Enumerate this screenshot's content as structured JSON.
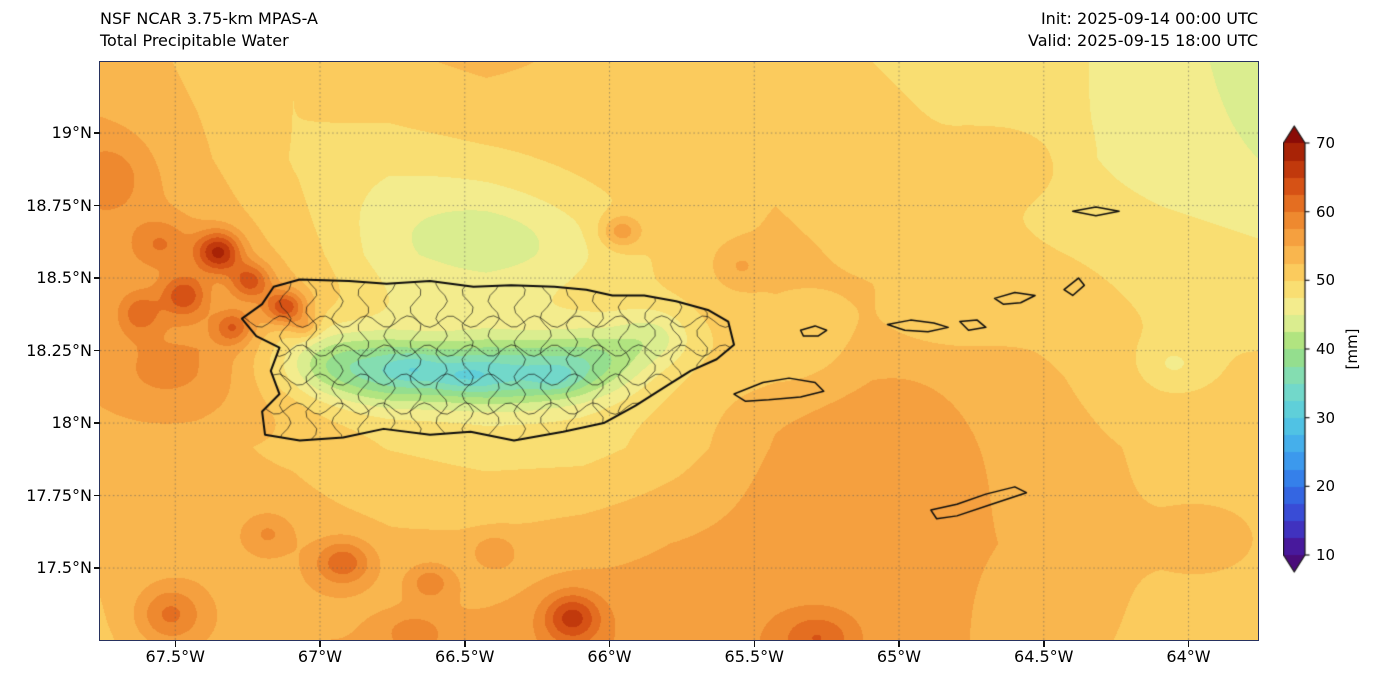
{
  "header": {
    "title_line1": "NSF NCAR 3.75-km MPAS-A",
    "title_line2": "Total Precipitable Water",
    "init_line": "Init: 2025-09-14 00:00 UTC",
    "valid_line": "Valid: 2025-09-15 18:00 UTC"
  },
  "axes": {
    "x_ticks": [
      {
        "value": -67.5,
        "label": "67.5°W"
      },
      {
        "value": -67.0,
        "label": "67°W"
      },
      {
        "value": -66.5,
        "label": "66.5°W"
      },
      {
        "value": -66.0,
        "label": "66°W"
      },
      {
        "value": -65.5,
        "label": "65.5°W"
      },
      {
        "value": -65.0,
        "label": "65°W"
      },
      {
        "value": -64.5,
        "label": "64.5°W"
      },
      {
        "value": -64.0,
        "label": "64°W"
      }
    ],
    "y_ticks": [
      {
        "value": 19.0,
        "label": "19°N"
      },
      {
        "value": 18.75,
        "label": "18.75°N"
      },
      {
        "value": 18.5,
        "label": "18.5°N"
      },
      {
        "value": 18.25,
        "label": "18.25°N"
      },
      {
        "value": 18.0,
        "label": "18°N"
      },
      {
        "value": 17.75,
        "label": "17.75°N"
      },
      {
        "value": 17.5,
        "label": "17.5°N"
      }
    ]
  },
  "colorbar": {
    "label": "[mm]",
    "min": 10,
    "max": 70,
    "extend": "both",
    "ticks": [
      {
        "value": 10,
        "label": "10"
      },
      {
        "value": 20,
        "label": "20"
      },
      {
        "value": 30,
        "label": "30"
      },
      {
        "value": 40,
        "label": "40"
      },
      {
        "value": 50,
        "label": "50"
      },
      {
        "value": 60,
        "label": "60"
      },
      {
        "value": 70,
        "label": "70"
      }
    ]
  },
  "chart_data": {
    "type": "heatmap",
    "title": "Total Precipitable Water",
    "model": "NSF NCAR 3.75-km MPAS-A",
    "init_time": "2025-09-14 00:00 UTC",
    "valid_time": "2025-09-15 18:00 UTC",
    "units": "mm",
    "lon_range": [
      -67.76,
      -63.76
    ],
    "lat_range": [
      17.252,
      19.245
    ],
    "level_min": 10,
    "level_max": 70,
    "level_step": 2.5,
    "under_color": "#4a0c7a",
    "over_color": "#8a0b06",
    "color_stops": [
      {
        "v": 10.0,
        "c": "#4c0c8a"
      },
      {
        "v": 15.0,
        "c": "#3c3fd0"
      },
      {
        "v": 20.0,
        "c": "#3173e8"
      },
      {
        "v": 25.0,
        "c": "#3fa6ef"
      },
      {
        "v": 30.0,
        "c": "#55cbe0"
      },
      {
        "v": 35.0,
        "c": "#7cdcc2"
      },
      {
        "v": 40.0,
        "c": "#9cdf7c"
      },
      {
        "v": 42.5,
        "c": "#c6e983"
      },
      {
        "v": 45.0,
        "c": "#eef09b"
      },
      {
        "v": 47.5,
        "c": "#f7e77e"
      },
      {
        "v": 50.0,
        "c": "#fbd565"
      },
      {
        "v": 52.5,
        "c": "#fac054"
      },
      {
        "v": 55.0,
        "c": "#f8ab47"
      },
      {
        "v": 57.5,
        "c": "#f29536"
      },
      {
        "v": 60.0,
        "c": "#ea7c28"
      },
      {
        "v": 62.5,
        "c": "#de601a"
      },
      {
        "v": 65.0,
        "c": "#cd4410"
      },
      {
        "v": 67.5,
        "c": "#b52d08"
      },
      {
        "v": 70.0,
        "c": "#9a1804"
      }
    ],
    "base_grid": {
      "nx": 13,
      "ny": 7,
      "order": "north-to-south rows, west-to-east columns, mm",
      "values": [
        54,
        52,
        50,
        52,
        53,
        52,
        52,
        51,
        50,
        49,
        48,
        46,
        44,
        55,
        53,
        50,
        49,
        50,
        51,
        52,
        52,
        51,
        50,
        48,
        46,
        45,
        56,
        55,
        52,
        47,
        47,
        49,
        51,
        53,
        52,
        51,
        50,
        49,
        48,
        55,
        56,
        54,
        49,
        47,
        48,
        50,
        53,
        54,
        53,
        52,
        50,
        50,
        53,
        53,
        52,
        50,
        49,
        49,
        51,
        54,
        55,
        54,
        53,
        52,
        51,
        53,
        54,
        54,
        53,
        53,
        54,
        55,
        56,
        56,
        55,
        54,
        52,
        51,
        52,
        54,
        55,
        55,
        56,
        57,
        57,
        57,
        56,
        55,
        53,
        52,
        51
      ]
    },
    "blob_fields": [
      "lon",
      "lat",
      "sigma_lon",
      "sigma_lat",
      "amplitude_mm"
    ],
    "blobs": [
      [
        -67.02,
        18.22,
        0.14,
        0.09,
        -7
      ],
      [
        -66.82,
        18.18,
        0.16,
        0.09,
        -8
      ],
      [
        -66.55,
        18.17,
        0.2,
        0.08,
        -9
      ],
      [
        -66.28,
        18.17,
        0.16,
        0.08,
        -8
      ],
      [
        -66.05,
        18.21,
        0.13,
        0.08,
        -7
      ],
      [
        -65.85,
        18.3,
        0.1,
        0.07,
        -5
      ],
      [
        -66.5,
        18.16,
        0.07,
        0.035,
        -3
      ],
      [
        -66.68,
        18.19,
        0.06,
        0.035,
        -3
      ],
      [
        -66.18,
        18.15,
        0.06,
        0.035,
        -3
      ],
      [
        -66.35,
        18.62,
        0.25,
        0.1,
        -3
      ],
      [
        -66.55,
        18.75,
        0.3,
        0.12,
        -2
      ],
      [
        -65.35,
        18.25,
        0.18,
        0.12,
        -3
      ],
      [
        -64.85,
        18.35,
        0.15,
        0.08,
        -2
      ],
      [
        -64.05,
        18.2,
        0.08,
        0.06,
        -3
      ],
      [
        -67.35,
        18.59,
        0.055,
        0.05,
        14
      ],
      [
        -67.24,
        18.49,
        0.05,
        0.045,
        10
      ],
      [
        -67.12,
        18.4,
        0.05,
        0.04,
        12
      ],
      [
        -67.47,
        18.44,
        0.055,
        0.05,
        9
      ],
      [
        -67.62,
        18.38,
        0.05,
        0.05,
        6
      ],
      [
        -67.3,
        18.33,
        0.045,
        0.04,
        8
      ],
      [
        -67.05,
        18.33,
        0.035,
        0.03,
        5
      ],
      [
        -67.55,
        18.62,
        0.07,
        0.06,
        5
      ],
      [
        -67.55,
        18.15,
        0.18,
        0.12,
        3
      ],
      [
        -67.72,
        18.85,
        0.1,
        0.1,
        4
      ],
      [
        -66.92,
        17.52,
        0.07,
        0.055,
        8
      ],
      [
        -66.62,
        17.45,
        0.055,
        0.045,
        5
      ],
      [
        -66.4,
        17.56,
        0.05,
        0.04,
        4
      ],
      [
        -66.13,
        17.33,
        0.07,
        0.06,
        10
      ],
      [
        -67.52,
        17.34,
        0.08,
        0.07,
        7
      ],
      [
        -67.18,
        17.62,
        0.06,
        0.05,
        4
      ],
      [
        -66.68,
        17.28,
        0.08,
        0.05,
        4
      ],
      [
        -65.28,
        17.26,
        0.09,
        0.06,
        6
      ],
      [
        -65.96,
        18.66,
        0.05,
        0.04,
        7
      ],
      [
        -65.55,
        18.54,
        0.06,
        0.05,
        3
      ],
      [
        -65.1,
        17.95,
        0.35,
        0.25,
        2
      ],
      [
        -64.6,
        18.9,
        0.12,
        0.08,
        3
      ],
      [
        -63.9,
        17.6,
        0.15,
        0.1,
        2
      ]
    ],
    "coastlines": {
      "puerto_rico": [
        [
          -67.16,
          18.47
        ],
        [
          -67.07,
          18.495
        ],
        [
          -66.9,
          18.49
        ],
        [
          -66.77,
          18.48
        ],
        [
          -66.62,
          18.49
        ],
        [
          -66.47,
          18.47
        ],
        [
          -66.34,
          18.475
        ],
        [
          -66.19,
          18.47
        ],
        [
          -66.08,
          18.46
        ],
        [
          -65.99,
          18.44
        ],
        [
          -65.88,
          18.44
        ],
        [
          -65.77,
          18.42
        ],
        [
          -65.66,
          18.39
        ],
        [
          -65.59,
          18.35
        ],
        [
          -65.57,
          18.27
        ],
        [
          -65.63,
          18.22
        ],
        [
          -65.72,
          18.18
        ],
        [
          -65.8,
          18.13
        ],
        [
          -65.91,
          18.06
        ],
        [
          -66.02,
          18.0
        ],
        [
          -66.16,
          17.97
        ],
        [
          -66.33,
          17.94
        ],
        [
          -66.48,
          17.97
        ],
        [
          -66.62,
          17.96
        ],
        [
          -66.78,
          17.98
        ],
        [
          -66.92,
          17.95
        ],
        [
          -67.07,
          17.94
        ],
        [
          -67.19,
          17.96
        ],
        [
          -67.2,
          18.04
        ],
        [
          -67.14,
          18.1
        ],
        [
          -67.17,
          18.18
        ],
        [
          -67.14,
          18.26
        ],
        [
          -67.22,
          18.3
        ],
        [
          -67.27,
          18.36
        ],
        [
          -67.2,
          18.41
        ]
      ],
      "islands": [
        [
          [
            -65.57,
            18.1
          ],
          [
            -65.47,
            18.14
          ],
          [
            -65.38,
            18.155
          ],
          [
            -65.29,
            18.14
          ],
          [
            -65.26,
            18.11
          ],
          [
            -65.34,
            18.09
          ],
          [
            -65.45,
            18.08
          ],
          [
            -65.53,
            18.075
          ]
        ],
        [
          [
            -65.34,
            18.32
          ],
          [
            -65.29,
            18.335
          ],
          [
            -65.25,
            18.32
          ],
          [
            -65.28,
            18.3
          ],
          [
            -65.33,
            18.3
          ]
        ],
        [
          [
            -65.04,
            18.34
          ],
          [
            -64.96,
            18.355
          ],
          [
            -64.88,
            18.345
          ],
          [
            -64.83,
            18.33
          ],
          [
            -64.9,
            18.315
          ],
          [
            -64.98,
            18.32
          ]
        ],
        [
          [
            -64.79,
            18.35
          ],
          [
            -64.73,
            18.355
          ],
          [
            -64.7,
            18.33
          ],
          [
            -64.76,
            18.32
          ]
        ],
        [
          [
            -64.67,
            18.43
          ],
          [
            -64.6,
            18.45
          ],
          [
            -64.53,
            18.44
          ],
          [
            -64.58,
            18.415
          ],
          [
            -64.64,
            18.41
          ]
        ],
        [
          [
            -64.43,
            18.46
          ],
          [
            -64.38,
            18.5
          ],
          [
            -64.36,
            18.475
          ],
          [
            -64.4,
            18.44
          ]
        ],
        [
          [
            -64.4,
            18.73
          ],
          [
            -64.32,
            18.745
          ],
          [
            -64.24,
            18.73
          ],
          [
            -64.32,
            18.715
          ]
        ],
        [
          [
            -64.89,
            17.7
          ],
          [
            -64.8,
            17.72
          ],
          [
            -64.7,
            17.755
          ],
          [
            -64.6,
            17.78
          ],
          [
            -64.56,
            17.76
          ],
          [
            -64.68,
            17.72
          ],
          [
            -64.8,
            17.68
          ],
          [
            -64.87,
            17.67
          ]
        ]
      ]
    },
    "admin_lines": {
      "meridians": [
        -67.12,
        -67.03,
        -66.94,
        -66.85,
        -66.76,
        -66.67,
        -66.58,
        -66.49,
        -66.4,
        -66.31,
        -66.22,
        -66.13,
        -66.04,
        -65.95,
        -65.86,
        -65.77,
        -65.68
      ],
      "parallels": [
        18.05,
        18.15,
        18.25,
        18.35
      ],
      "wiggle": 0.02
    }
  }
}
